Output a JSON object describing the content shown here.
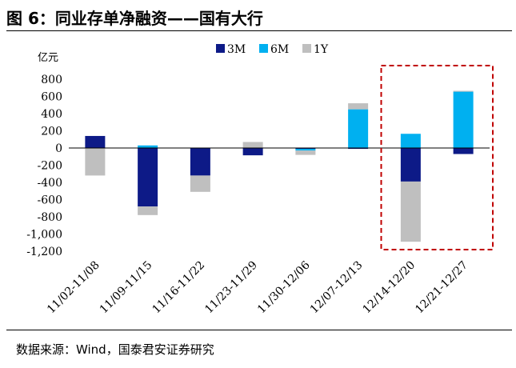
{
  "figure": {
    "title": "图 6：同业存单净融资——国有大行",
    "source": "数据来源：Wind，国泰君安证券研究"
  },
  "chart_data": {
    "type": "bar",
    "stacked": true,
    "ylabel": "亿元",
    "ylim": [
      -1200,
      800
    ],
    "yticks": [
      800,
      600,
      400,
      200,
      0,
      -200,
      -400,
      -600,
      -800,
      -1000,
      -1200
    ],
    "ytick_labels": [
      "800",
      "600",
      "400",
      "200",
      "0",
      "-200",
      "-400",
      "-600",
      "-800",
      "-1,000",
      "-1,200"
    ],
    "categories": [
      "11/02-11/08",
      "11/09-11/15",
      "11/16-11/22",
      "11/23-11/29",
      "11/30-12/06",
      "12/07-12/13",
      "12/14-12/20",
      "12/21-12/27"
    ],
    "series": [
      {
        "name": "3M",
        "color": "#0d1a87",
        "values": [
          140,
          -680,
          -320,
          -85,
          -10,
          -10,
          -390,
          -70
        ]
      },
      {
        "name": "6M",
        "color": "#00b0f0",
        "values": [
          0,
          30,
          0,
          0,
          -20,
          450,
          165,
          655
        ]
      },
      {
        "name": "1Y",
        "color": "#bfbfbf",
        "values": [
          -320,
          -100,
          -190,
          70,
          -50,
          70,
          -700,
          10
        ]
      }
    ],
    "legend_position": "top",
    "highlight_categories": [
      "12/14-12/20",
      "12/21-12/27"
    ],
    "highlight_color": "#c00000"
  }
}
